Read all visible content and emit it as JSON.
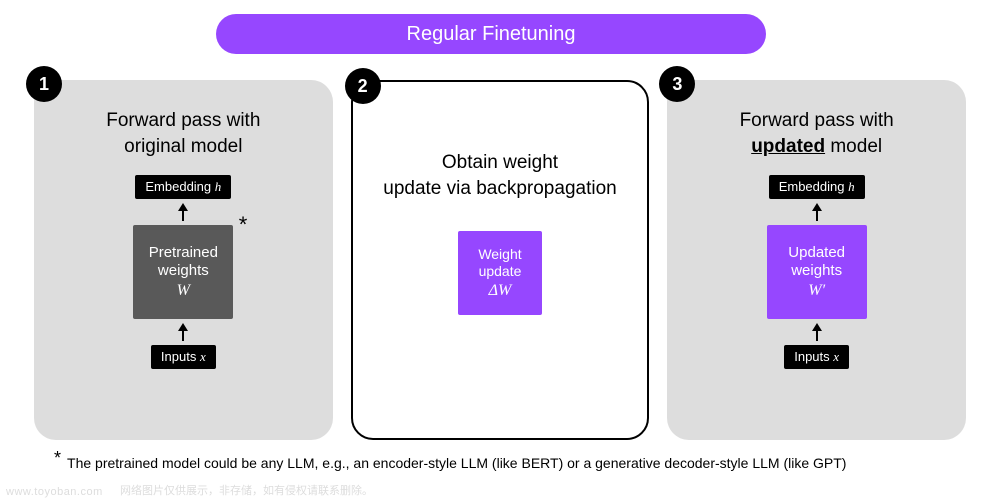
{
  "colors": {
    "purple": "#9647ff",
    "gray_panel": "#dddddd",
    "dark_gray_box": "#595959",
    "black": "#000000",
    "white": "#ffffff"
  },
  "title": "Regular Finetuning",
  "panels": [
    {
      "num": "1",
      "heading_l1": "Forward pass with",
      "heading_l2": "original model",
      "top_box": "Embedding",
      "top_box_var": "h",
      "mid_l1": "Pretrained",
      "mid_l2": "weights",
      "mid_var": "W",
      "bottom_box": "Inputs",
      "bottom_box_var": "x",
      "has_asterisk": true
    },
    {
      "num": "2",
      "heading_l1": "Obtain weight",
      "heading_l2": "update via backpropagation",
      "mid_l1": "Weight",
      "mid_l2": "update",
      "mid_var": "ΔW"
    },
    {
      "num": "3",
      "heading_l1": "Forward pass with",
      "heading_underlined": "updated",
      "heading_after": " model",
      "top_box": "Embedding",
      "top_box_var": "h",
      "mid_l1": "Updated",
      "mid_l2": "weights",
      "mid_var": "W′",
      "bottom_box": "Inputs",
      "bottom_box_var": "x"
    }
  ],
  "footnote": "The pretrained model could be any LLM, e.g., an encoder-style LLM (like BERT) or a generative decoder-style LLM (like GPT)",
  "watermark_left": "www.toyoban.com",
  "watermark_right": "网络图片仅供展示，非存储，如有侵权请联系删除。"
}
